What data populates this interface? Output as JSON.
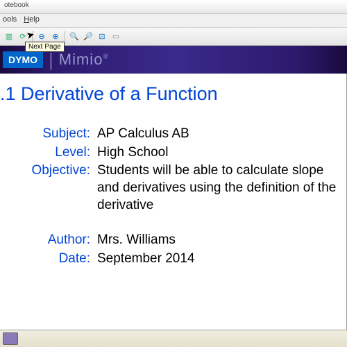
{
  "window": {
    "title_suffix": "otebook"
  },
  "menu": {
    "tools": "ools",
    "help": "Help"
  },
  "toolbar": {
    "tooltip": "Next Page",
    "icons": {
      "save": "💾",
      "print": "🖨",
      "undo": "↶",
      "redo": "↷",
      "zoom_out": "🔍",
      "zoom_in": "🔎",
      "zoom_fit": "⊡",
      "nav1": "◀",
      "nav2": "▶",
      "page": "📄"
    }
  },
  "brand": {
    "dymo": "DYMO",
    "mimio": "Mimio",
    "reg": "®"
  },
  "slide": {
    "title": ".1 Derivative of a Function",
    "fields": {
      "subject": {
        "label": "Subject:",
        "value": "AP Calculus AB"
      },
      "level": {
        "label": "Level:",
        "value": "High School"
      },
      "objective": {
        "label": "Objective:",
        "value": "Students will be able to calculate slope and derivatives using the definition of the derivative"
      },
      "author": {
        "label": "Author:",
        "value": "Mrs. Williams"
      },
      "date": {
        "label": "Date:",
        "value": "September 2014"
      }
    }
  },
  "colors": {
    "heading": "#0045d6",
    "text": "#000000",
    "brand_bg_dark": "#1a0a3e",
    "brand_bg_mid": "#2d1a6e",
    "dymo_bg": "#0066cc"
  }
}
